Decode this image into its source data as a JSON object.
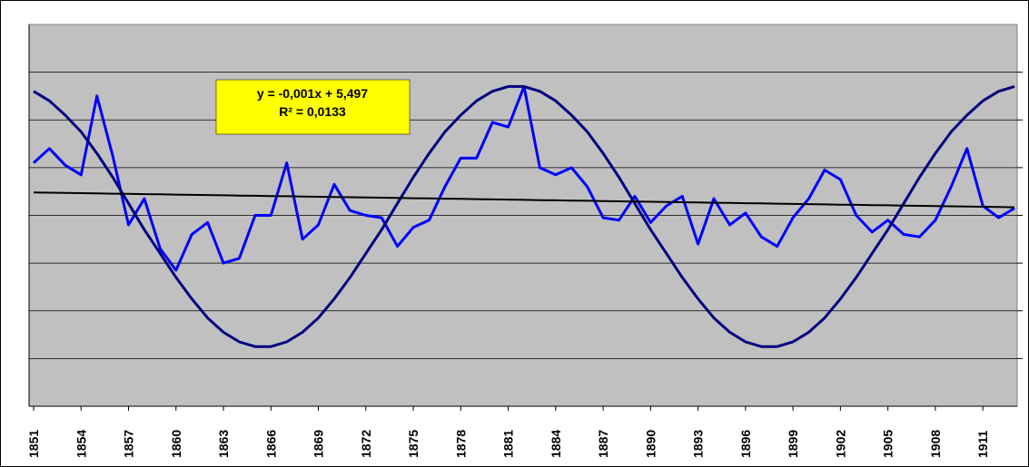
{
  "chart_data": {
    "type": "line",
    "categories": [
      "1851",
      null,
      null,
      "1854",
      null,
      null,
      "1857",
      null,
      null,
      "1860",
      null,
      null,
      "1863",
      null,
      null,
      "1866",
      null,
      null,
      "1869",
      null,
      null,
      "1872",
      null,
      null,
      "1875",
      null,
      null,
      "1878",
      null,
      null,
      "1881",
      null,
      null,
      "1884",
      null,
      null,
      "1887",
      null,
      null,
      "1890",
      null,
      null,
      "1893",
      null,
      null,
      "1896",
      null,
      null,
      "1899",
      null,
      null,
      "1902",
      null,
      null,
      "1905",
      null,
      null,
      "1908",
      null,
      null,
      "1911",
      null,
      null
    ],
    "series": [
      {
        "color": "#0000ff",
        "values": [
          5.62,
          5.68,
          5.61,
          5.57,
          5.9,
          5.65,
          5.36,
          5.47,
          5.26,
          5.17,
          5.32,
          5.37,
          5.2,
          5.22,
          5.4,
          5.4,
          5.62,
          5.3,
          5.36,
          5.53,
          5.42,
          5.4,
          5.39,
          5.27,
          5.35,
          5.38,
          5.52,
          5.64,
          5.64,
          5.79,
          5.77,
          5.94,
          5.6,
          5.57,
          5.6,
          5.52,
          5.39,
          5.38,
          5.48,
          5.37,
          5.44,
          5.48,
          5.28,
          5.47,
          5.36,
          5.41,
          5.31,
          5.27,
          5.39,
          5.47,
          5.59,
          5.55,
          5.4,
          5.33,
          5.38,
          5.32,
          5.31,
          5.38,
          5.52,
          5.68,
          5.44,
          5.39,
          5.43
        ]
      },
      {
        "color": "#000080",
        "values": [
          5.92,
          5.88,
          5.82,
          5.75,
          5.66,
          5.56,
          5.45,
          5.34,
          5.24,
          5.14,
          5.05,
          4.97,
          4.91,
          4.87,
          4.85,
          4.85,
          4.87,
          4.91,
          4.97,
          5.05,
          5.14,
          5.24,
          5.34,
          5.45,
          5.56,
          5.66,
          5.75,
          5.82,
          5.88,
          5.92,
          5.94,
          5.94,
          5.92,
          5.88,
          5.82,
          5.75,
          5.66,
          5.56,
          5.45,
          5.34,
          5.24,
          5.14,
          5.05,
          4.97,
          4.91,
          4.87,
          4.85,
          4.85,
          4.87,
          4.91,
          4.97,
          5.05,
          5.14,
          5.24,
          5.34,
          5.45,
          5.56,
          5.66,
          5.75,
          5.82,
          5.88,
          5.92,
          5.94
        ]
      },
      {
        "color": "#000000",
        "values": [
          5.496,
          5.495,
          5.494,
          5.493,
          5.492,
          5.491,
          5.49,
          5.489,
          5.488,
          5.487,
          5.486,
          5.485,
          5.484,
          5.483,
          5.482,
          5.481,
          5.48,
          5.479,
          5.478,
          5.477,
          5.476,
          5.475,
          5.474,
          5.473,
          5.472,
          5.471,
          5.47,
          5.469,
          5.468,
          5.467,
          5.466,
          5.465,
          5.464,
          5.463,
          5.462,
          5.461,
          5.46,
          5.459,
          5.458,
          5.457,
          5.456,
          5.455,
          5.454,
          5.453,
          5.452,
          5.451,
          5.45,
          5.449,
          5.448,
          5.447,
          5.446,
          5.445,
          5.444,
          5.443,
          5.442,
          5.441,
          5.44,
          5.439,
          5.438,
          5.437,
          5.436,
          5.435,
          5.434
        ]
      }
    ],
    "annotation": [
      "y = -0,001x + 5,497",
      "R² = 0,0133"
    ],
    "ylim": [
      4.6,
      6.2
    ],
    "ygrid": [
      4.8,
      5.0,
      5.2,
      5.4,
      5.6,
      5.8,
      6.0
    ],
    "grid": true,
    "plot_color": "#c0c0c0",
    "annotation_color": "#ffff00"
  }
}
